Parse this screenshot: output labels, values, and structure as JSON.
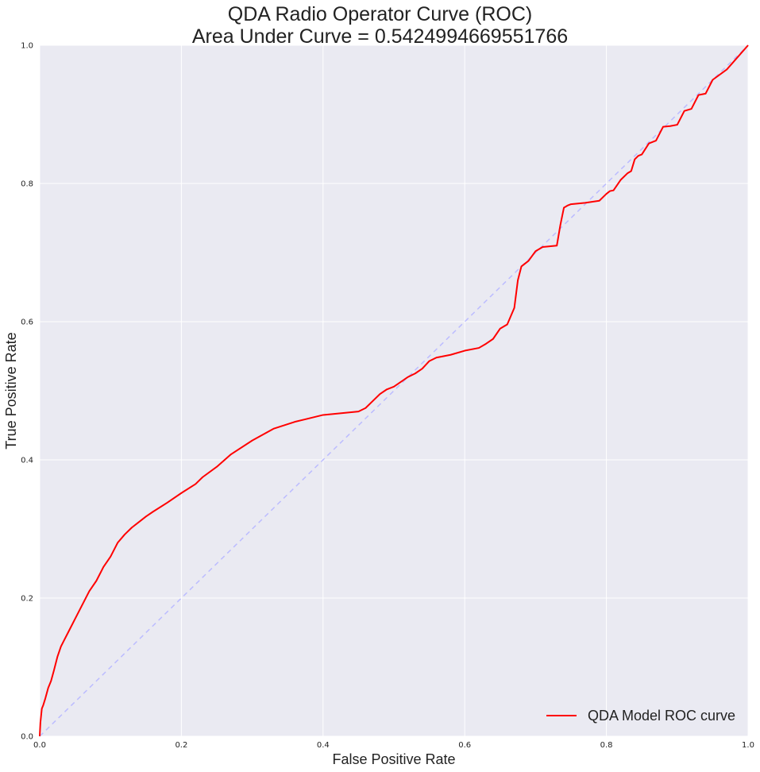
{
  "chart_data": {
    "type": "line",
    "title": "QDA Radio Operator Curve (ROC)",
    "subtitle": "Area Under Curve = 0.5424994669551766",
    "xlabel": "False Positive Rate",
    "ylabel": "True Positive Rate",
    "xlim": [
      0,
      1
    ],
    "ylim": [
      0,
      1
    ],
    "xticks": [
      "0.0",
      "0.2",
      "0.4",
      "0.6",
      "0.8",
      "1.0"
    ],
    "yticks": [
      "0.0",
      "0.2",
      "0.4",
      "0.6",
      "0.8",
      "1.0"
    ],
    "grid": true,
    "legend_position": "bottom-right",
    "colors": {
      "plot_background": "#eaeaf2",
      "grid": "#ffffff"
    },
    "series": [
      {
        "name": "QDA Model ROC curve",
        "color": "#ff0000",
        "style": "solid",
        "x": [
          0.0,
          0.001,
          0.003,
          0.005,
          0.008,
          0.012,
          0.016,
          0.02,
          0.025,
          0.03,
          0.035,
          0.04,
          0.05,
          0.06,
          0.07,
          0.08,
          0.09,
          0.1,
          0.11,
          0.12,
          0.13,
          0.14,
          0.15,
          0.16,
          0.18,
          0.2,
          0.22,
          0.23,
          0.25,
          0.27,
          0.3,
          0.33,
          0.36,
          0.38,
          0.4,
          0.43,
          0.45,
          0.46,
          0.47,
          0.48,
          0.49,
          0.5,
          0.51,
          0.52,
          0.53,
          0.54,
          0.55,
          0.56,
          0.58,
          0.6,
          0.62,
          0.63,
          0.64,
          0.65,
          0.66,
          0.67,
          0.675,
          0.68,
          0.69,
          0.7,
          0.71,
          0.72,
          0.73,
          0.735,
          0.74,
          0.745,
          0.75,
          0.77,
          0.79,
          0.8,
          0.805,
          0.81,
          0.82,
          0.83,
          0.835,
          0.84,
          0.845,
          0.85,
          0.86,
          0.87,
          0.88,
          0.89,
          0.9,
          0.91,
          0.92,
          0.93,
          0.94,
          0.95,
          0.97,
          1.0
        ],
        "y": [
          0.0,
          0.02,
          0.04,
          0.045,
          0.055,
          0.07,
          0.08,
          0.095,
          0.115,
          0.13,
          0.14,
          0.15,
          0.17,
          0.19,
          0.21,
          0.225,
          0.245,
          0.26,
          0.28,
          0.292,
          0.302,
          0.31,
          0.318,
          0.325,
          0.338,
          0.352,
          0.365,
          0.375,
          0.39,
          0.408,
          0.428,
          0.445,
          0.455,
          0.46,
          0.465,
          0.468,
          0.47,
          0.475,
          0.485,
          0.495,
          0.502,
          0.506,
          0.513,
          0.52,
          0.525,
          0.532,
          0.543,
          0.548,
          0.552,
          0.558,
          0.562,
          0.568,
          0.575,
          0.59,
          0.596,
          0.62,
          0.66,
          0.68,
          0.688,
          0.702,
          0.708,
          0.709,
          0.71,
          0.74,
          0.765,
          0.768,
          0.77,
          0.772,
          0.775,
          0.785,
          0.789,
          0.79,
          0.805,
          0.815,
          0.818,
          0.835,
          0.84,
          0.842,
          0.858,
          0.862,
          0.882,
          0.883,
          0.885,
          0.905,
          0.908,
          0.928,
          0.93,
          0.95,
          0.965,
          1.0
        ]
      },
      {
        "color": "#bcbcff",
        "style": "dashed",
        "x": [
          0,
          1
        ],
        "y": [
          0,
          1
        ]
      }
    ]
  }
}
